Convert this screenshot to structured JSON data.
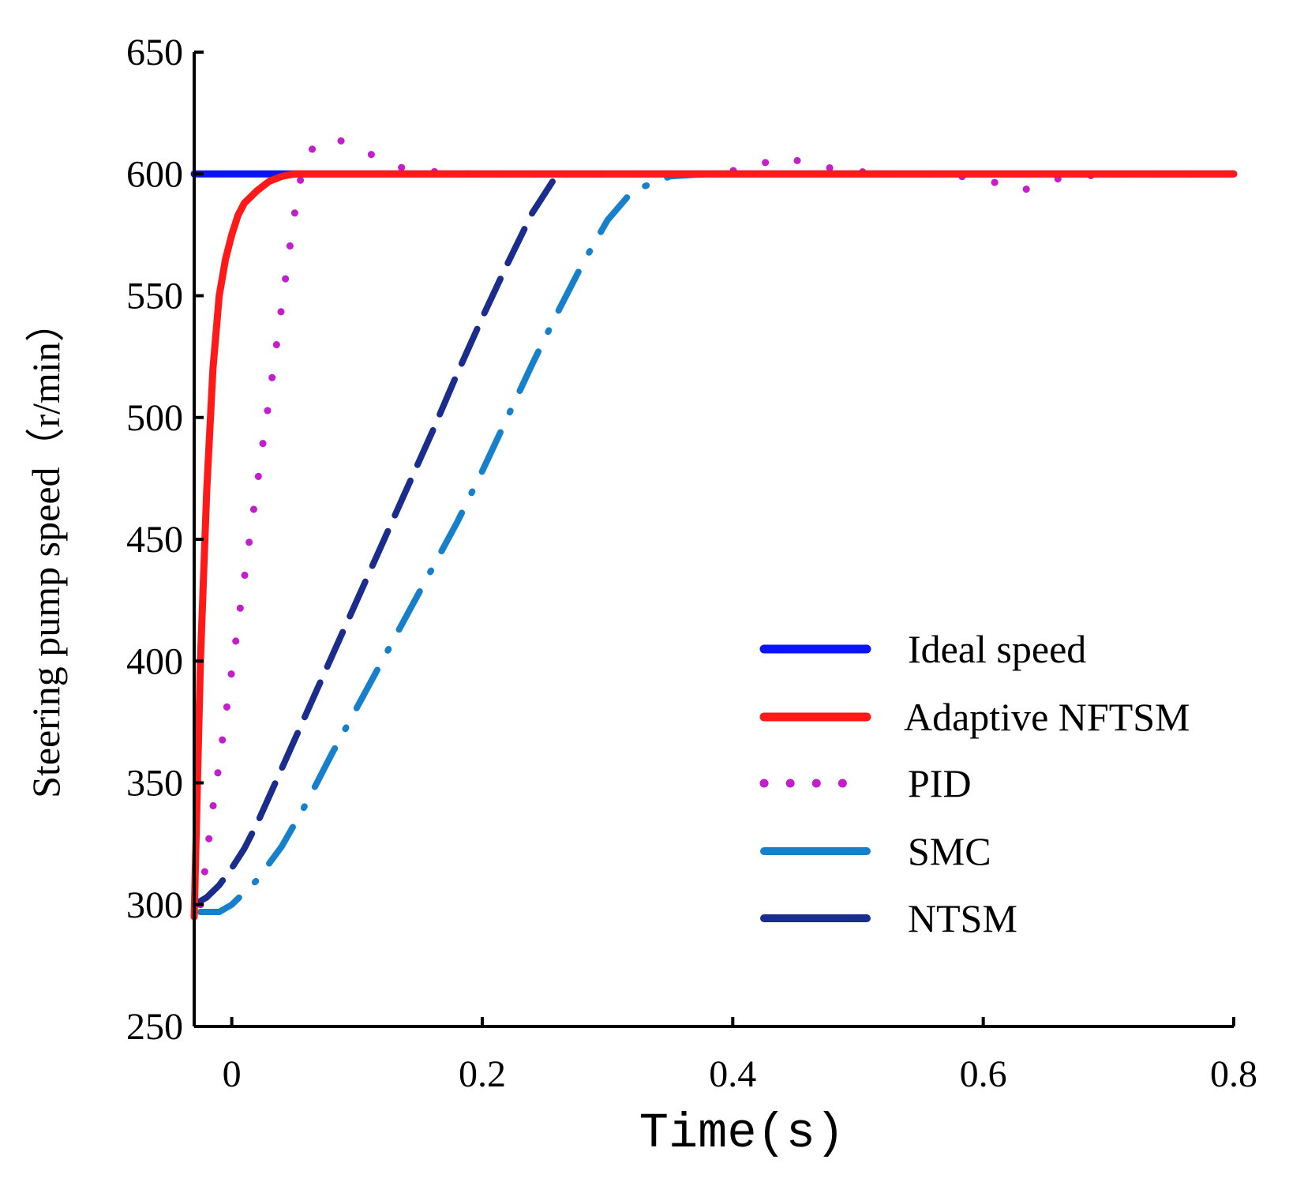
{
  "chart_data": {
    "type": "line",
    "xlabel": "Time(s)",
    "ylabel": "Steering pump speed（r/min）",
    "xlim": [
      -0.03,
      0.8
    ],
    "ylim": [
      250,
      650
    ],
    "x_ticks": [
      0,
      0.2,
      0.4,
      0.6,
      0.8
    ],
    "x_tick_labels": [
      "0",
      "0.2",
      "0.4",
      "0.6",
      "0.8"
    ],
    "y_ticks": [
      250,
      300,
      350,
      400,
      450,
      500,
      550,
      600,
      650
    ],
    "y_tick_labels": [
      "250",
      "300",
      "350",
      "400",
      "450",
      "500",
      "550",
      "600",
      "650"
    ],
    "grid": false,
    "legend_position": "lower-right",
    "series": [
      {
        "name": "Ideal speed",
        "color": "#0a14f5",
        "style": "solid",
        "x": [
          -0.03,
          0.0,
          0.02,
          0.05,
          0.8
        ],
        "y": [
          600,
          600,
          600,
          600,
          600
        ]
      },
      {
        "name": "Adaptive NFTSM",
        "color": "#ff1a1a",
        "style": "solid",
        "x": [
          -0.03,
          -0.025,
          -0.02,
          -0.015,
          -0.01,
          -0.005,
          0.0,
          0.005,
          0.01,
          0.02,
          0.03,
          0.04,
          0.05,
          0.06,
          0.08,
          0.8
        ],
        "y": [
          295,
          400,
          470,
          520,
          550,
          565,
          575,
          583,
          588,
          593,
          597,
          599,
          600,
          600,
          600,
          600
        ]
      },
      {
        "name": "PID",
        "color": "#c31ecc",
        "style": "dotted",
        "x": [
          -0.025,
          -0.02,
          -0.015,
          -0.01,
          -0.005,
          0.0,
          0.005,
          0.01,
          0.015,
          0.02,
          0.025,
          0.03,
          0.035,
          0.04,
          0.045,
          0.05,
          0.055,
          0.06,
          0.065,
          0.08,
          0.1,
          0.13,
          0.16,
          0.19,
          0.22,
          0.26,
          0.3,
          0.34,
          0.38,
          0.41,
          0.44,
          0.47,
          0.5,
          0.53,
          0.56,
          0.6,
          0.63,
          0.66,
          0.7,
          0.74,
          0.78
        ],
        "y": [
          300,
          320,
          340,
          358,
          377,
          396,
          415,
          434,
          453,
          471,
          490,
          508,
          527,
          546,
          565,
          583,
          598,
          605,
          611,
          615,
          611,
          603,
          601,
          600,
          600,
          600,
          600,
          600,
          600,
          602,
          607,
          603,
          601,
          600,
          600,
          598,
          593,
          598,
          600,
          600,
          600
        ]
      },
      {
        "name": "SMC",
        "color": "#1680cc",
        "style": "dash-dot",
        "x": [
          -0.025,
          -0.01,
          0.0,
          0.02,
          0.04,
          0.06,
          0.08,
          0.1,
          0.12,
          0.14,
          0.16,
          0.18,
          0.2,
          0.22,
          0.24,
          0.26,
          0.28,
          0.3,
          0.32,
          0.35,
          0.38,
          0.4,
          0.43,
          0.8
        ],
        "y": [
          297,
          297,
          300,
          310,
          324,
          342,
          362,
          381,
          400,
          419,
          438,
          457,
          478,
          500,
          522,
          543,
          563,
          581,
          593,
          599,
          600,
          600,
          600,
          600
        ]
      },
      {
        "name": "NTSM",
        "color": "#1a2c8c",
        "style": "dashed",
        "x": [
          -0.03,
          -0.02,
          -0.01,
          0.0,
          0.01,
          0.02,
          0.04,
          0.06,
          0.08,
          0.1,
          0.12,
          0.14,
          0.16,
          0.18,
          0.2,
          0.22,
          0.24,
          0.26,
          0.8
        ],
        "y": [
          300,
          303,
          308,
          315,
          323,
          333,
          356,
          379,
          402,
          425,
          448,
          471,
          494,
          518,
          541,
          563,
          584,
          600,
          600
        ]
      }
    ]
  }
}
